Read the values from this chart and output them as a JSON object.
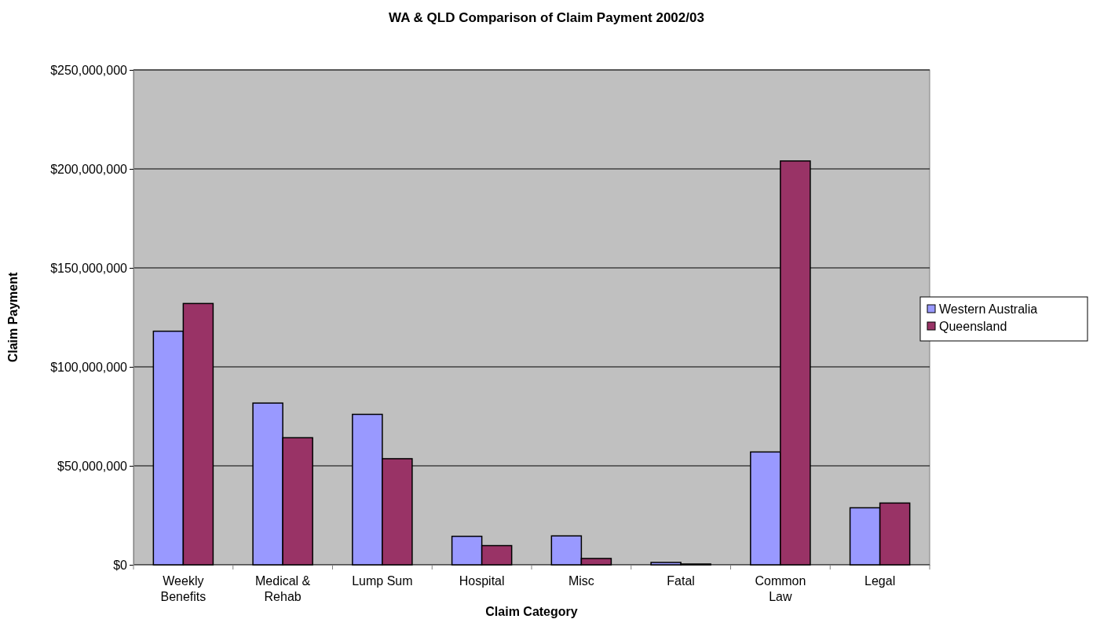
{
  "chart_data": {
    "type": "bar",
    "title": "WA & QLD Comparison of Claim Payment 2002/03",
    "xlabel": "Claim Category",
    "ylabel": "Claim Payment",
    "categories": [
      "Weekly Benefits",
      "Medical & Rehab",
      "Lump Sum",
      "Hospital",
      "Misc",
      "Fatal",
      "Common Law",
      "Legal"
    ],
    "series": [
      {
        "name": "Western Australia",
        "color": "#9999ff",
        "values": [
          118000000,
          81700000,
          76000000,
          14400000,
          14600000,
          1200000,
          57000000,
          28800000
        ]
      },
      {
        "name": "Queensland",
        "color": "#993366",
        "values": [
          132000000,
          64200000,
          53600000,
          9700000,
          3200000,
          400000,
          204000000,
          31200000
        ]
      }
    ],
    "ylim": [
      0,
      250000000
    ],
    "yticks": [
      {
        "value": 0,
        "label": "$0"
      },
      {
        "value": 50000000,
        "label": "$50,000,000"
      },
      {
        "value": 100000000,
        "label": "$100,000,000"
      },
      {
        "value": 150000000,
        "label": "$150,000,000"
      },
      {
        "value": 200000000,
        "label": "$200,000,000"
      },
      {
        "value": 250000000,
        "label": "$250,000,000"
      }
    ],
    "grid": "y",
    "legend": "right"
  }
}
